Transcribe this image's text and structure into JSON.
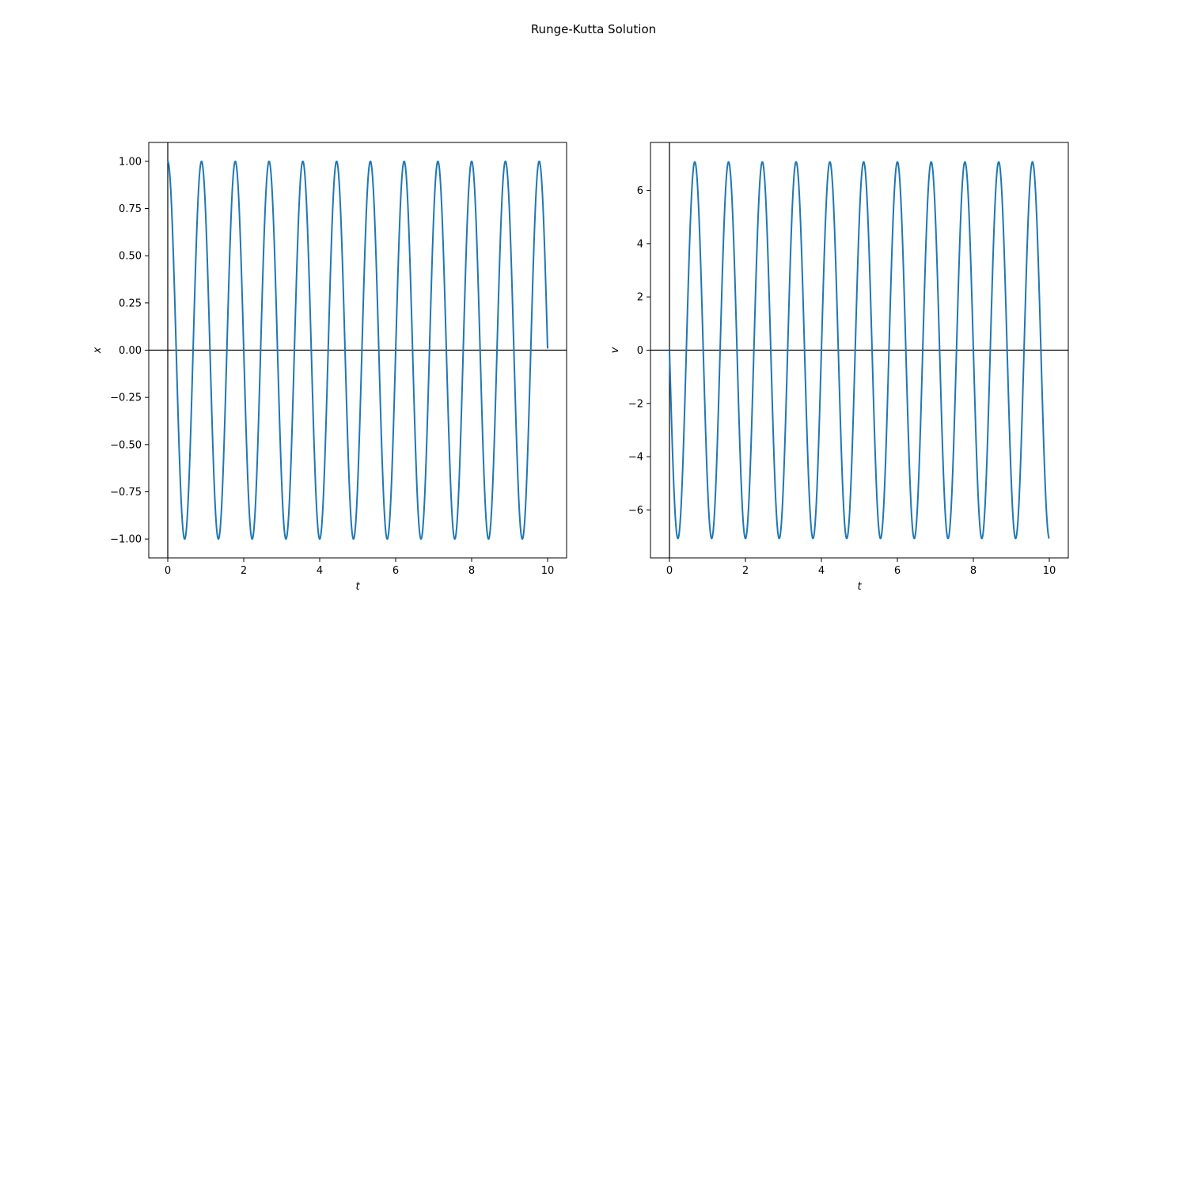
{
  "figure": {
    "suptitle": "Runge-Kutta Solution",
    "background": "#ffffff"
  },
  "chart_data": [
    {
      "type": "line",
      "xlabel": "t",
      "ylabel": "x",
      "xlim": [
        -0.5,
        10.5
      ],
      "ylim": [
        -1.1,
        1.1
      ],
      "xticks": [
        0,
        2,
        4,
        6,
        8,
        10
      ],
      "xtick_labels": [
        "0",
        "2",
        "4",
        "6",
        "8",
        "10"
      ],
      "yticks": [
        -1.0,
        -0.75,
        -0.5,
        -0.25,
        0.0,
        0.25,
        0.5,
        0.75,
        1.0
      ],
      "ytick_labels": [
        "−1.00",
        "−0.75",
        "−0.50",
        "−0.25",
        "0.00",
        "0.25",
        "0.50",
        "0.75",
        "1.00"
      ],
      "reference_lines": {
        "x": 0,
        "y": 0,
        "color": "#000000"
      },
      "grid": false,
      "series": [
        {
          "color": "#1f77b4",
          "t_range": [
            0,
            10
          ],
          "shape": "cosine",
          "amplitude": 1.0,
          "period": 0.889,
          "start_value": 1.0,
          "end_value": -0.02,
          "peaks_t": [
            0,
            0.889,
            1.778,
            2.667,
            3.556,
            4.444,
            5.333,
            6.222,
            7.111,
            8.0,
            8.889,
            9.778
          ],
          "troughs_t": [
            0.444,
            1.333,
            2.222,
            3.111,
            4.0,
            4.889,
            5.778,
            6.667,
            7.556,
            8.444,
            9.333
          ]
        }
      ]
    },
    {
      "type": "line",
      "xlabel": "t",
      "ylabel": "v",
      "xlim": [
        -0.5,
        10.5
      ],
      "ylim": [
        -7.8,
        7.8
      ],
      "xticks": [
        0,
        2,
        4,
        6,
        8,
        10
      ],
      "xtick_labels": [
        "0",
        "2",
        "4",
        "6",
        "8",
        "10"
      ],
      "yticks": [
        -6,
        -4,
        -2,
        0,
        2,
        4,
        6
      ],
      "ytick_labels": [
        "−6",
        "−4",
        "−2",
        "0",
        "2",
        "4",
        "6"
      ],
      "reference_lines": {
        "x": 0,
        "y": 0,
        "color": "#000000"
      },
      "grid": false,
      "series": [
        {
          "color": "#1f77b4",
          "t_range": [
            0,
            10
          ],
          "shape": "negative-sine",
          "amplitude": 7.07,
          "period": 0.889,
          "start_value": 0.0,
          "end_value": -7.07,
          "peaks_t": [
            0.667,
            1.556,
            2.444,
            3.333,
            4.222,
            5.111,
            6.0,
            6.889,
            7.778,
            8.667,
            9.556
          ],
          "troughs_t": [
            0.222,
            1.111,
            2.0,
            2.889,
            3.778,
            4.667,
            5.556,
            6.444,
            7.333,
            8.222,
            9.111,
            10.0
          ]
        }
      ]
    }
  ]
}
